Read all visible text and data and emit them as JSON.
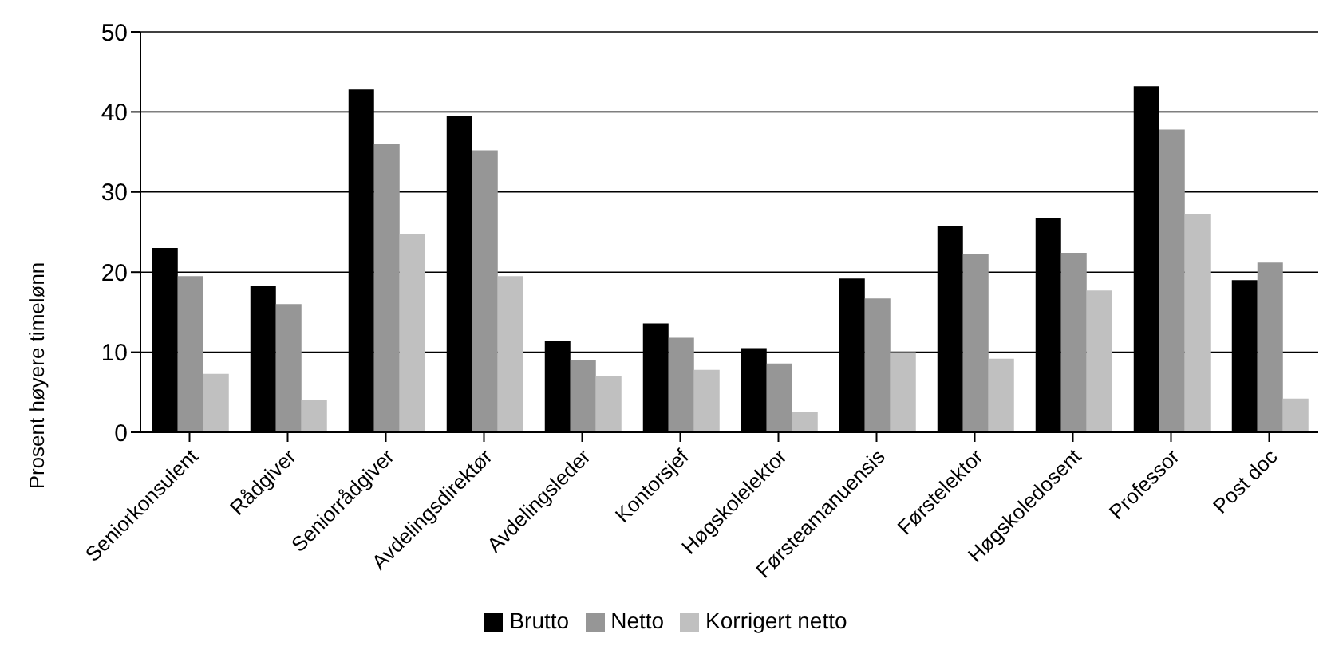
{
  "chart_data": {
    "type": "bar",
    "ylabel": "Prosent høyere timelønn",
    "categories": [
      "Seniorkonsulent",
      "Rådgiver",
      "Seniorrådgiver",
      "Avdelingsdirektør",
      "Avdelingsleder",
      "Kontorsjef",
      "Høgskolelektor",
      "Førsteamanuensis",
      "Førstelektor",
      "Høgskoledosent",
      "Professor",
      "Post doc"
    ],
    "series": [
      {
        "name": "Brutto",
        "color": "#000000",
        "values": [
          23,
          18.3,
          42.8,
          39.5,
          11.4,
          13.6,
          10.5,
          19.2,
          25.7,
          26.8,
          43.2,
          19
        ]
      },
      {
        "name": "Netto",
        "color": "#969696",
        "values": [
          19.5,
          16,
          36,
          35.2,
          9,
          11.8,
          8.6,
          16.7,
          22.3,
          22.4,
          37.8,
          21.2
        ]
      },
      {
        "name": "Korrigert netto",
        "color": "#c0c0c0",
        "values": [
          7.3,
          4,
          24.7,
          19.5,
          7,
          7.8,
          2.5,
          10,
          9.2,
          17.7,
          27.3,
          4.2
        ]
      }
    ],
    "ylim": [
      0,
      50
    ],
    "yticks": [
      0,
      10,
      20,
      30,
      40,
      50
    ],
    "grid": "y",
    "legend": "bottom"
  }
}
